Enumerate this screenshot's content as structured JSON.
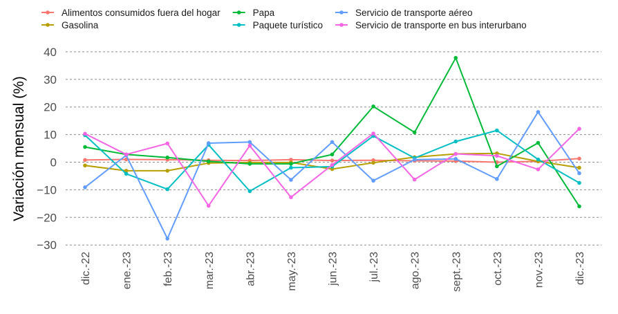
{
  "chart_data": {
    "type": "line",
    "title": "",
    "xlabel": "",
    "ylabel": "Variación mensual (%)",
    "ylim": [
      -30,
      40
    ],
    "yticks": [
      -30,
      -20,
      -10,
      0,
      10,
      20,
      30,
      40
    ],
    "ytick_labels": [
      "−30",
      "−20",
      "−10",
      "0",
      "10",
      "20",
      "30",
      "40"
    ],
    "grid": "horizontal dashed",
    "legend_position": "top",
    "categories": [
      "dic.-22",
      "ene.-23",
      "feb.-23",
      "mar.-23",
      "abr.-23",
      "may.-23",
      "jun.-23",
      "jul.-23",
      "ago.-23",
      "sept.-23",
      "oct.-23",
      "nov.-23",
      "dic.-23"
    ],
    "series": [
      {
        "name": "Alimentos consumidos fuera del hogar",
        "color": "#F8766D",
        "values": [
          0.8,
          1.0,
          0.9,
          0.7,
          0.6,
          0.9,
          0.6,
          0.7,
          0.5,
          0.4,
          0.0,
          0.3,
          1.3
        ]
      },
      {
        "name": "Gasolina",
        "color": "#B79F00",
        "values": [
          -1.2,
          -3.1,
          -3.1,
          -0.3,
          -0.1,
          -0.1,
          -2.5,
          -0.2,
          1.8,
          3.0,
          3.2,
          0.3,
          -2.0
        ]
      },
      {
        "name": "Papa",
        "color": "#00BA38",
        "values": [
          5.5,
          2.8,
          1.7,
          0.3,
          -0.6,
          -0.6,
          2.8,
          20.2,
          10.8,
          37.8,
          -1.5,
          7.0,
          -16.0
        ]
      },
      {
        "name": "Paquete turístico",
        "color": "#00BFC4",
        "values": [
          9.8,
          -4.2,
          -9.8,
          6.3,
          -10.5,
          -2.0,
          -1.6,
          9.5,
          1.5,
          7.5,
          11.5,
          1.0,
          -7.5
        ]
      },
      {
        "name": "Servicio de transporte aéreo",
        "color": "#619CFF",
        "values": [
          -9.1,
          2.5,
          -27.7,
          6.9,
          7.3,
          -6.4,
          7.3,
          -6.7,
          0.9,
          1.2,
          -6.1,
          18.2,
          -4.0
        ]
      },
      {
        "name": "Servicio de transporte en bus interurbano",
        "color": "#F564E3",
        "values": [
          10.3,
          2.8,
          6.8,
          -15.8,
          6.0,
          -12.7,
          -1.0,
          10.4,
          -6.3,
          3.0,
          2.3,
          -2.6,
          12.1
        ]
      }
    ]
  }
}
